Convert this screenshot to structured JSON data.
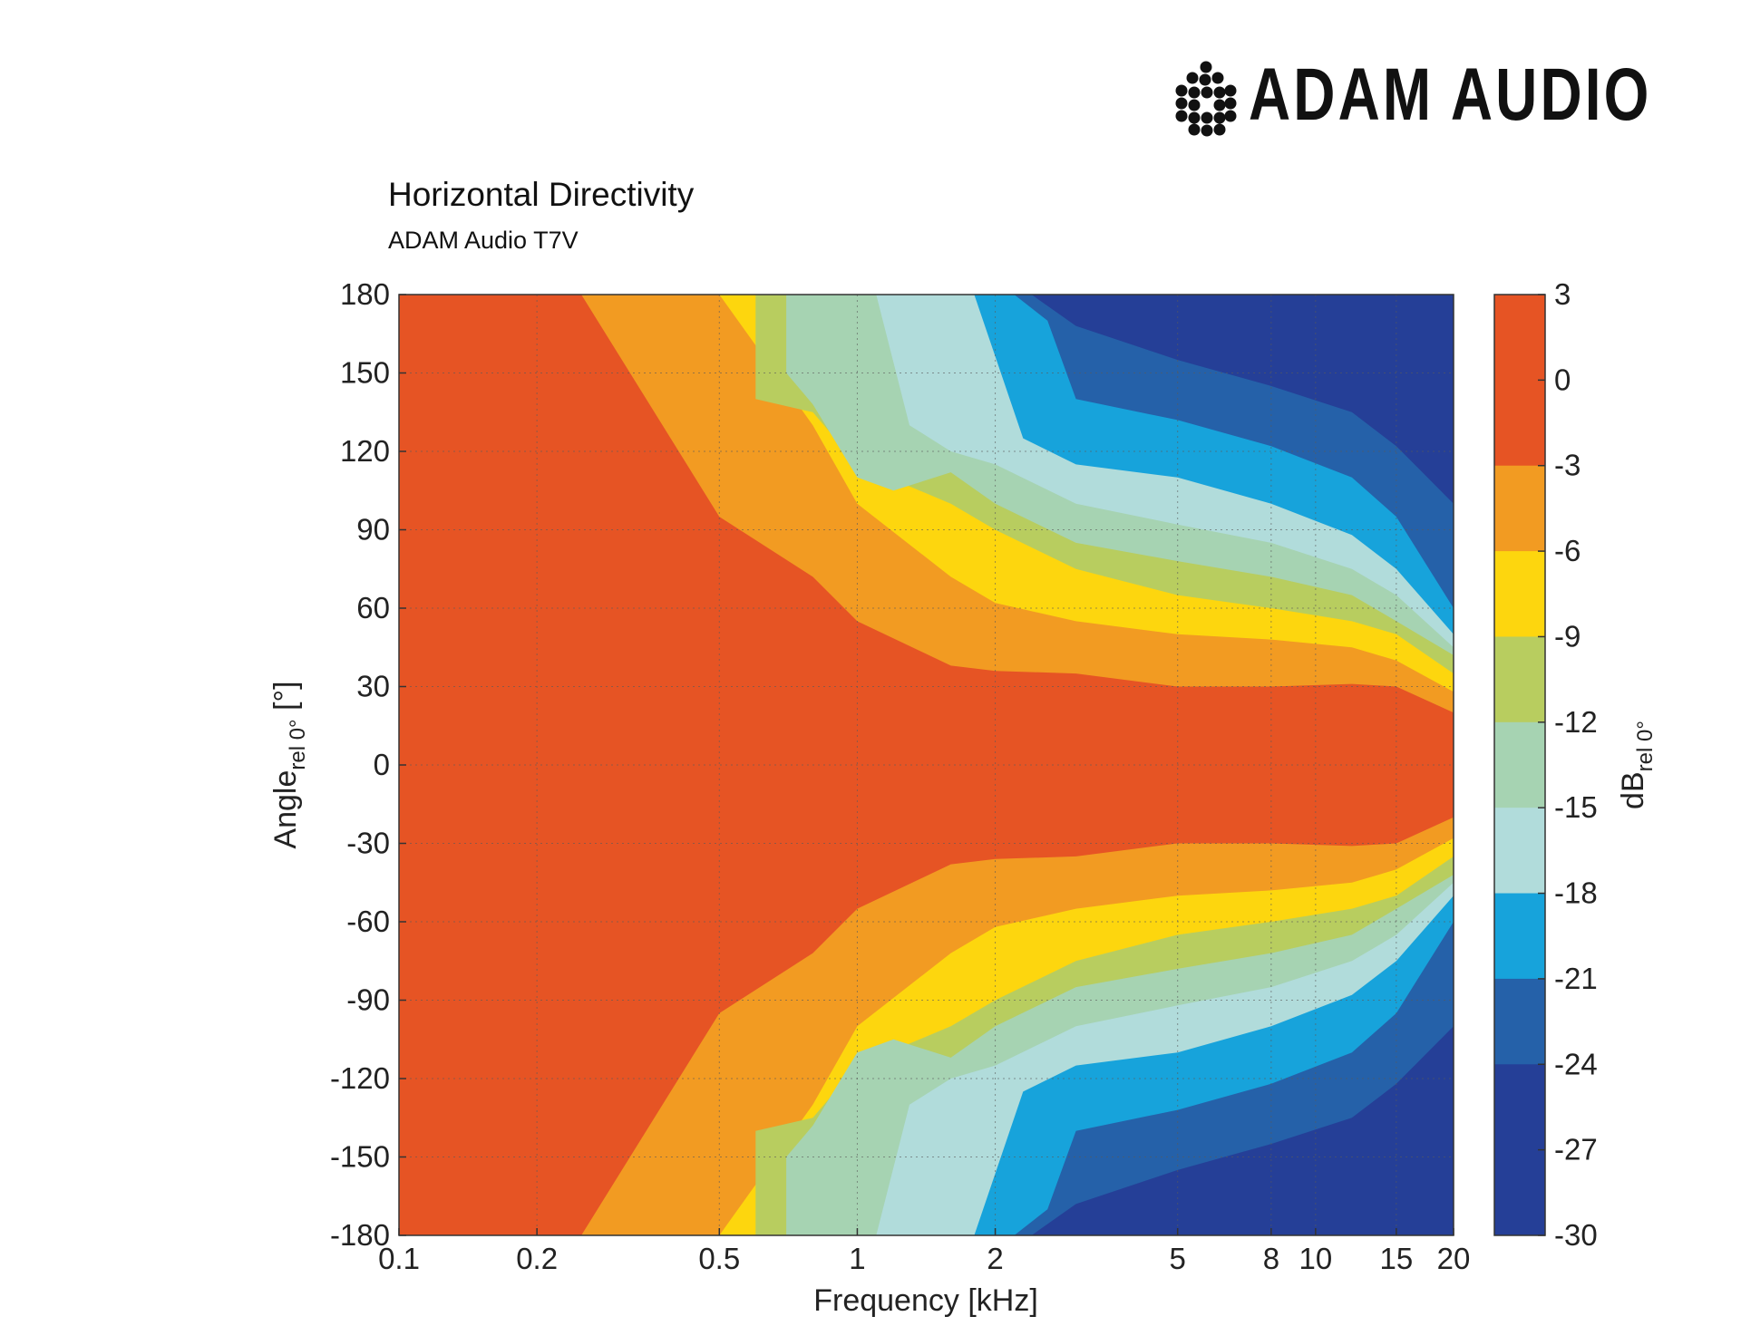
{
  "brand": {
    "name": "ADAM AUDIO"
  },
  "chart_data": {
    "type": "heatmap",
    "title": "Horizontal Directivity",
    "subtitle": "ADAM Audio T7V",
    "xlabel": "Frequency [kHz]",
    "ylabel": {
      "main": "Angle",
      "sub": "rel 0°",
      "unit": " [°]"
    },
    "colorbar_label": {
      "main": "dB",
      "sub": "rel 0°"
    },
    "x_scale": "log",
    "xlim": [
      0.1,
      20
    ],
    "ylim": [
      -180,
      180
    ],
    "x_ticks": [
      {
        "value": 0.1,
        "label": "0.1"
      },
      {
        "value": 0.2,
        "label": "0.2"
      },
      {
        "value": 0.5,
        "label": "0.5"
      },
      {
        "value": 1,
        "label": "1"
      },
      {
        "value": 2,
        "label": "2"
      },
      {
        "value": 5,
        "label": "5"
      },
      {
        "value": 8,
        "label": "8"
      },
      {
        "value": 10,
        "label": "10"
      },
      {
        "value": 15,
        "label": "15"
      },
      {
        "value": 20,
        "label": "20"
      }
    ],
    "y_ticks": [
      180,
      150,
      120,
      90,
      60,
      30,
      0,
      -30,
      -60,
      -90,
      -120,
      -150,
      -180
    ],
    "colorbar": {
      "ticks": [
        "3",
        "0",
        "-3",
        "-6",
        "-9",
        "-12",
        "-15",
        "-18",
        "-21",
        "-24",
        "-27",
        "-30"
      ],
      "levels": [
        {
          "from": 0,
          "to": 3,
          "color": "#E65424"
        },
        {
          "from": -3,
          "to": 0,
          "color": "#E65424"
        },
        {
          "from": -6,
          "to": -3,
          "color": "#F29B22"
        },
        {
          "from": -9,
          "to": -6,
          "color": "#FDD60E"
        },
        {
          "from": -12,
          "to": -9,
          "color": "#B8CD5F"
        },
        {
          "from": -15,
          "to": -12,
          "color": "#A6D3B2"
        },
        {
          "from": -18,
          "to": -15,
          "color": "#B1DCDB"
        },
        {
          "from": -21,
          "to": -18,
          "color": "#17A3DB"
        },
        {
          "from": -24,
          "to": -21,
          "color": "#2561A9"
        },
        {
          "from": -27,
          "to": -24,
          "color": "#253F97"
        },
        {
          "from": -30,
          "to": -27,
          "color": "#253F97"
        }
      ]
    },
    "contours": [
      {
        "level": -3,
        "color": "#F29B22",
        "freq_khz": [
          0.1,
          0.25,
          0.5,
          0.8,
          1,
          1.6,
          2,
          3,
          5,
          8,
          12,
          15,
          20
        ],
        "angle_deg": [
          180,
          180,
          95,
          72,
          55,
          38,
          36,
          35,
          30,
          30,
          31,
          30,
          20
        ]
      },
      {
        "level": -6,
        "color": "#FDD60E",
        "freq_khz": [
          0.5,
          0.8,
          1,
          1.6,
          2,
          3,
          5,
          8,
          12,
          15,
          20
        ],
        "angle_deg": [
          180,
          130,
          100,
          72,
          62,
          55,
          50,
          48,
          45,
          40,
          28
        ]
      },
      {
        "level": -9,
        "color": "#B8CD5F",
        "freq_khz": [
          0.6,
          0.8,
          1,
          1.6,
          2,
          3,
          5,
          8,
          12,
          15,
          20
        ],
        "angle_deg": [
          140,
          135,
          115,
          100,
          90,
          75,
          65,
          60,
          55,
          50,
          35
        ]
      },
      {
        "level": -12,
        "color": "#A6D3B2",
        "freq_khz": [
          0.7,
          0.8,
          1,
          1.2,
          1.6,
          2,
          3,
          5,
          8,
          12,
          15,
          20
        ],
        "angle_deg": [
          150,
          138,
          110,
          105,
          112,
          100,
          85,
          78,
          72,
          65,
          55,
          42
        ]
      },
      {
        "level": -15,
        "color": "#B1DCDB",
        "freq_khz": [
          1.1,
          1.3,
          1.6,
          2,
          3,
          5,
          8,
          12,
          15,
          20
        ],
        "angle_deg": [
          180,
          130,
          120,
          115,
          100,
          92,
          85,
          75,
          65,
          45
        ]
      },
      {
        "level": -18,
        "color": "#17A3DB",
        "freq_khz": [
          1.8,
          2.3,
          3,
          5,
          8,
          12,
          15,
          20
        ],
        "angle_deg": [
          180,
          125,
          115,
          110,
          100,
          88,
          75,
          50
        ]
      },
      {
        "level": -21,
        "color": "#2561A9",
        "freq_khz": [
          2.2,
          2.6,
          3,
          5,
          8,
          12,
          15,
          20
        ],
        "angle_deg": [
          180,
          170,
          140,
          132,
          122,
          110,
          95,
          60
        ]
      },
      {
        "level": -24,
        "color": "#253F97",
        "freq_khz": [
          2.4,
          3,
          5,
          8,
          12,
          15,
          20
        ],
        "angle_deg": [
          180,
          168,
          155,
          145,
          135,
          122,
          100
        ]
      }
    ],
    "grid": "dotted"
  }
}
